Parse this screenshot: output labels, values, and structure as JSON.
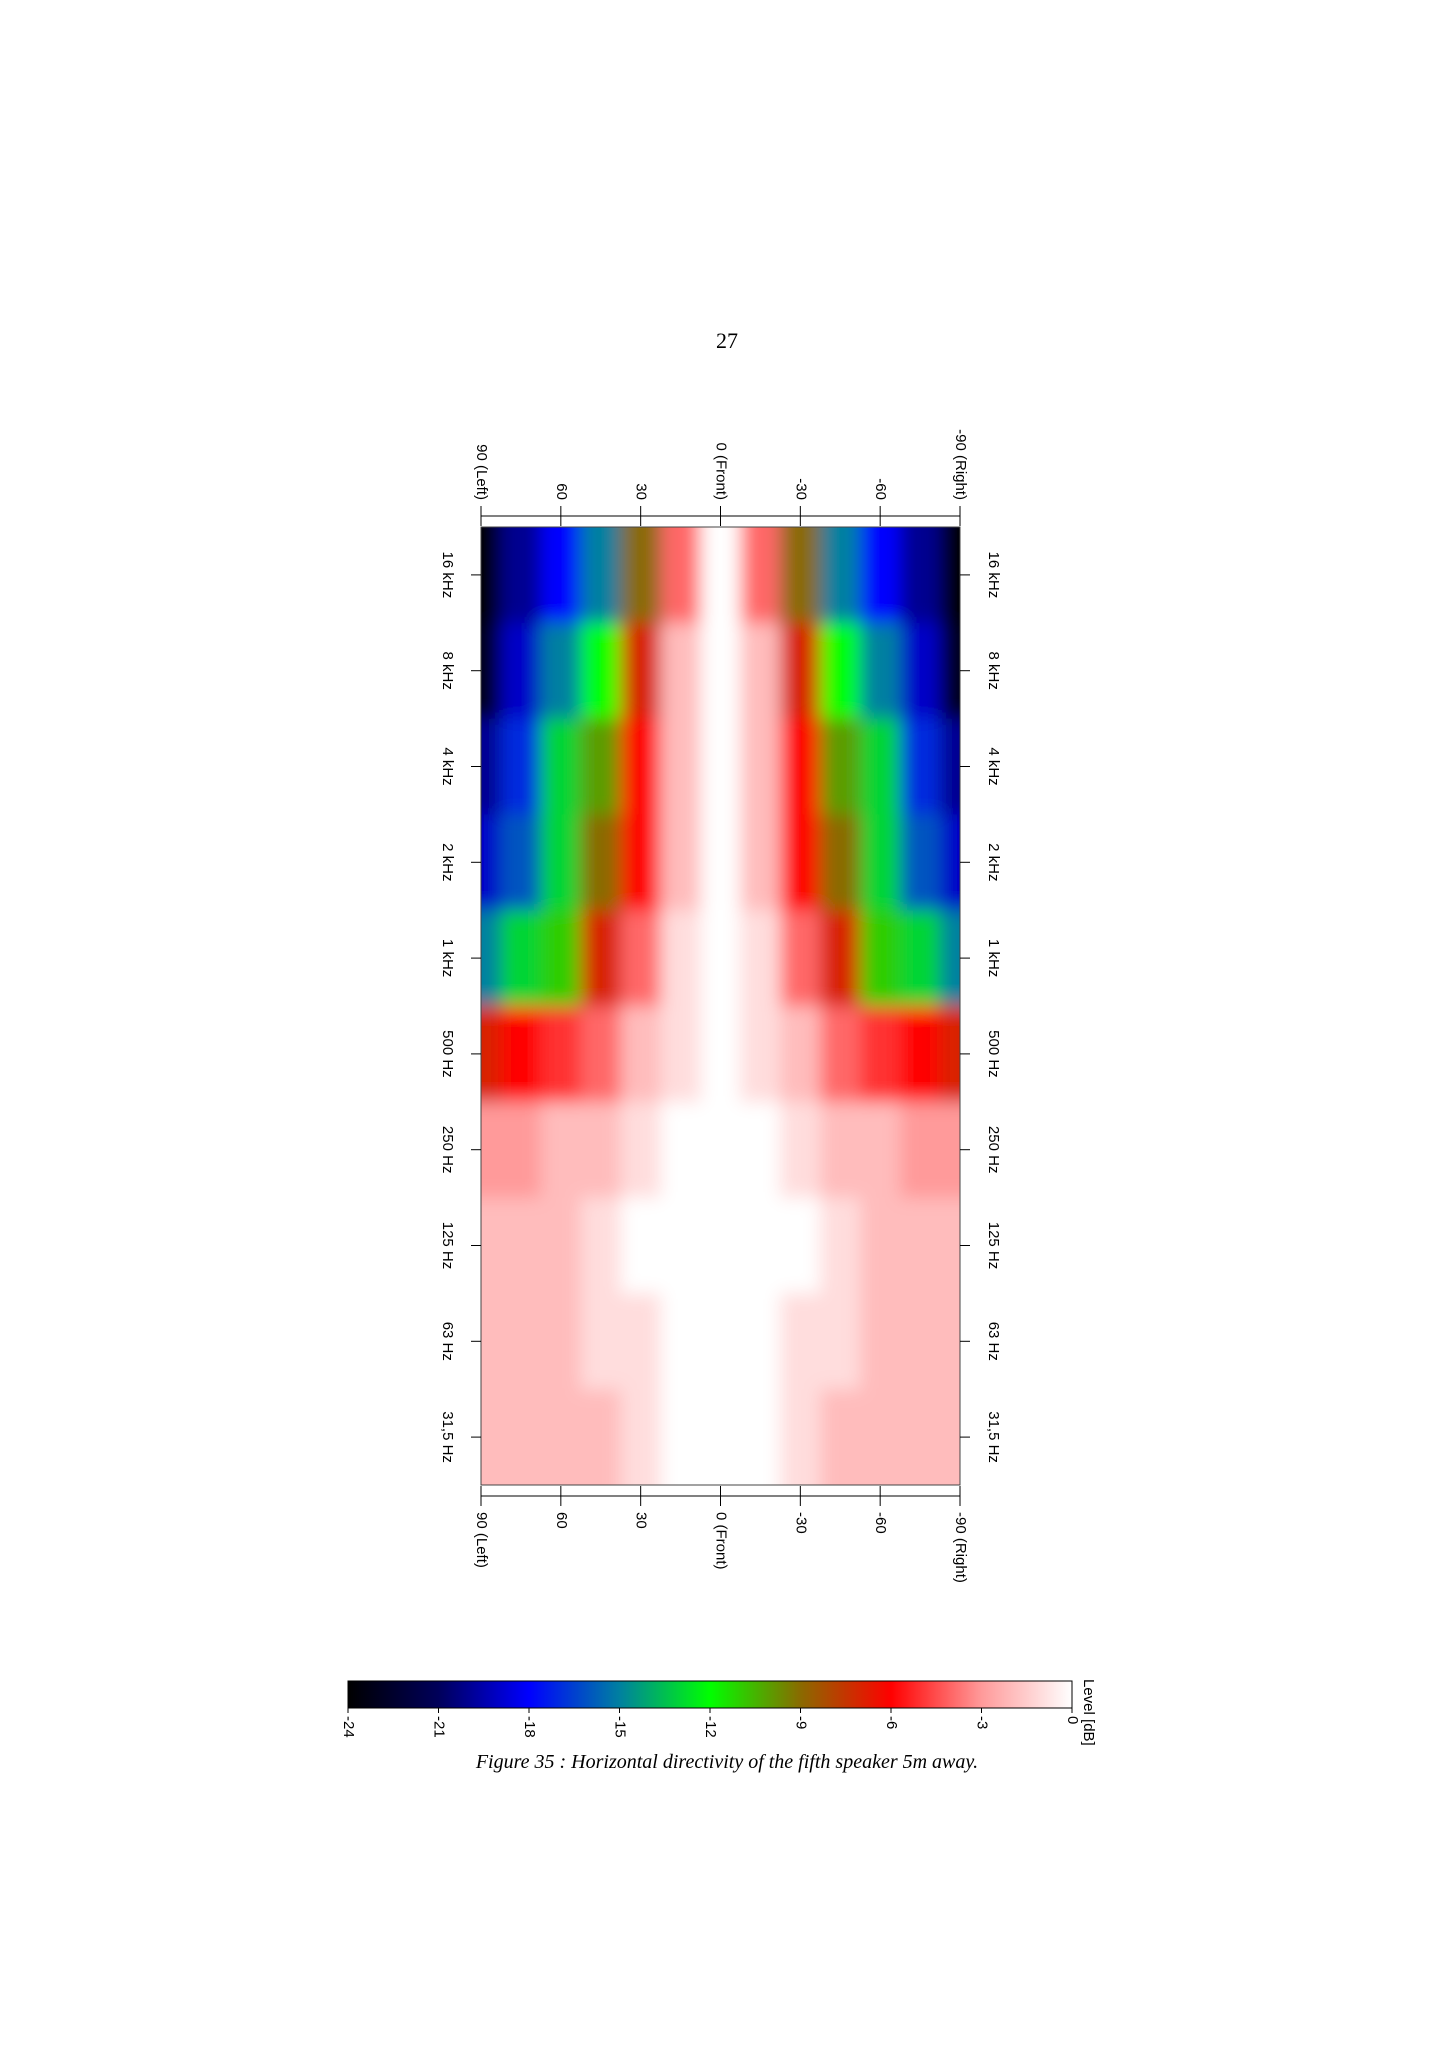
{
  "page_number": "27",
  "caption": "Figure 35 : Horizontal directivity of the fifth speaker 5m away.",
  "chart_data": {
    "type": "heatmap",
    "categories": [
      "16 kHz",
      "8 kHz",
      "4 kHz",
      "2 kHz",
      "1 kHz",
      "500 Hz",
      "250 Hz",
      "125 Hz",
      "63 Hz",
      "31,5 Hz"
    ],
    "x": [
      90,
      75,
      60,
      45,
      30,
      15,
      0,
      -15,
      -30,
      -45,
      -60,
      -75,
      -90
    ],
    "values": [
      [
        -24,
        -20,
        -18,
        -15,
        -9,
        -4,
        0,
        -4,
        -9,
        -15,
        -18,
        -20,
        -24
      ],
      [
        -23,
        -19,
        -15,
        -12,
        -7,
        -2,
        0,
        -2,
        -7,
        -12,
        -15,
        -19,
        -23
      ],
      [
        -20,
        -17,
        -13,
        -10,
        -6,
        -2,
        0,
        -2,
        -6,
        -10,
        -13,
        -17,
        -20
      ],
      [
        -19,
        -16,
        -13,
        -9,
        -6,
        -2,
        0,
        -2,
        -6,
        -9,
        -13,
        -16,
        -19
      ],
      [
        -15,
        -13,
        -11,
        -7,
        -4,
        -1,
        0,
        -1,
        -4,
        -7,
        -11,
        -13,
        -15
      ],
      [
        -7,
        -6,
        -5,
        -4,
        -2,
        -1,
        0,
        -1,
        -2,
        -4,
        -5,
        -6,
        -7
      ],
      [
        -3,
        -3,
        -2,
        -2,
        -1,
        0,
        0,
        0,
        -1,
        -2,
        -2,
        -3,
        -3
      ],
      [
        -2,
        -2,
        -2,
        -1,
        0,
        0,
        0,
        0,
        0,
        -1,
        -2,
        -2,
        -2
      ],
      [
        -2,
        -2,
        -2,
        -1,
        -1,
        0,
        0,
        0,
        -1,
        -1,
        -2,
        -2,
        -2
      ],
      [
        -2,
        -2,
        -2,
        -2,
        -1,
        0,
        0,
        0,
        -1,
        -2,
        -2,
        -2,
        -2
      ]
    ],
    "xlim": [
      90,
      -90
    ],
    "xticks": [
      {
        "value": 90,
        "label": "90 (Left)"
      },
      60,
      30,
      {
        "value": 0,
        "label": "0 (Front)"
      },
      -30,
      -60,
      {
        "value": -90,
        "label": "-90 (Right)"
      }
    ],
    "colorbar": {
      "label": "Level [dB]",
      "lim": [
        -24,
        0
      ],
      "ticks": [
        -24,
        -21,
        -18,
        -15,
        -12,
        -9,
        -6,
        -3,
        0
      ]
    },
    "colormap": [
      {
        "value": -24,
        "color": "#000000"
      },
      {
        "value": -21,
        "color": "#00005a"
      },
      {
        "value": -18,
        "color": "#0000ff"
      },
      {
        "value": -15,
        "color": "#0080a0"
      },
      {
        "value": -12,
        "color": "#00ff00"
      },
      {
        "value": -9,
        "color": "#8a6a00"
      },
      {
        "value": -6,
        "color": "#ff0000"
      },
      {
        "value": -3,
        "color": "#ff9a9a"
      },
      {
        "value": 0,
        "color": "#ffffff"
      }
    ]
  }
}
